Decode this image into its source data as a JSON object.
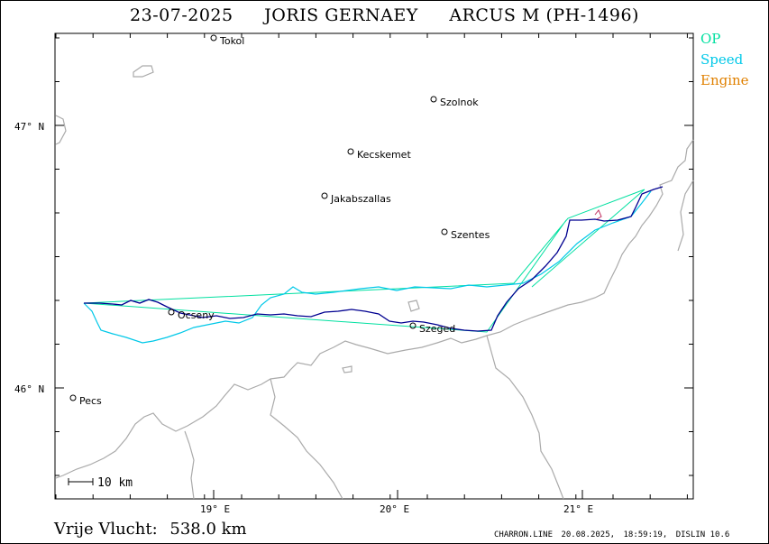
{
  "header": {
    "date": "23-07-2025",
    "pilot": "JORIS GERNAEY",
    "glider": "ARCUS M (PH-1496)"
  },
  "legend": [
    {
      "label": "OP",
      "color": "#00e0a0"
    },
    {
      "label": "Speed",
      "color": "#00c8e8"
    },
    {
      "label": "Engine",
      "color": "#e08000"
    }
  ],
  "map": {
    "lat_labels": [
      "47° N",
      "46° N"
    ],
    "lon_labels": [
      "19° E",
      "20° E",
      "21° E"
    ],
    "scale_label": "10  km",
    "towns": [
      {
        "name": "Tokol"
      },
      {
        "name": "Szolnok"
      },
      {
        "name": "Kecskemet"
      },
      {
        "name": "Jakabszallas"
      },
      {
        "name": "Szentes"
      },
      {
        "name": "Ocseny"
      },
      {
        "name": "Szeged"
      },
      {
        "name": "Pecs"
      }
    ],
    "colors": {
      "border": "#aaaaaa",
      "track": "#000090",
      "optimized": "#00e0a0",
      "speed": "#00c8e8"
    }
  },
  "summary": {
    "label": "Vrije Vlucht:",
    "distance": "538.0 km"
  },
  "footer": {
    "file": "CHARRON.LINE",
    "date": "20.08.2025,",
    "time": "18:59:19,",
    "software": "DISLIN 10.6"
  }
}
